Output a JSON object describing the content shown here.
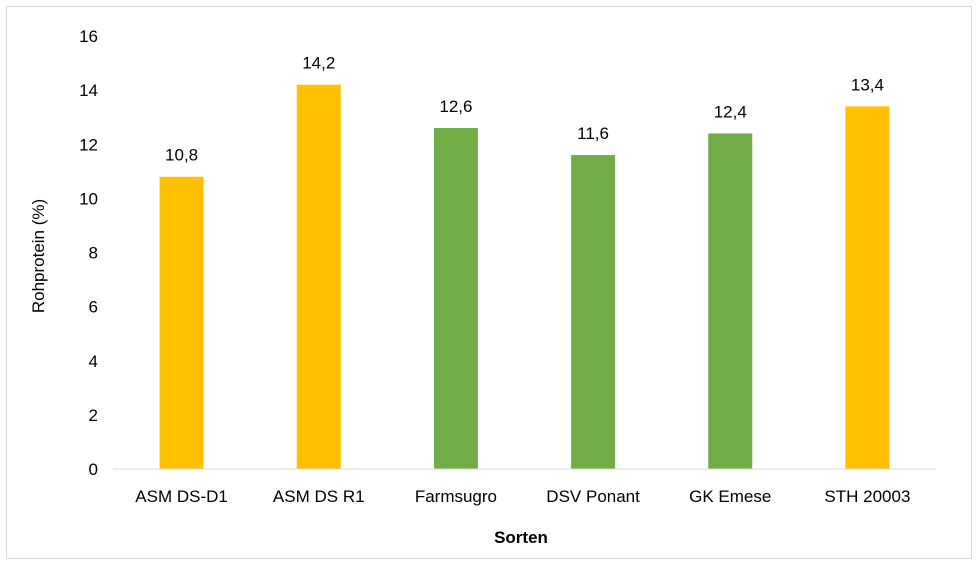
{
  "chart_data": {
    "type": "bar",
    "categories": [
      "ASM DS-D1",
      "ASM DS R1",
      "Farmsugro",
      "DSV Ponant",
      "GK Emese",
      "STH 20003"
    ],
    "values": [
      10.8,
      14.2,
      12.6,
      11.6,
      12.4,
      13.4
    ],
    "value_labels": [
      "10,8",
      "14,2",
      "12,6",
      "11,6",
      "12,4",
      "13,4"
    ],
    "bar_colors": [
      "#FFC000",
      "#FFC000",
      "#70AD47",
      "#70AD47",
      "#70AD47",
      "#FFC000"
    ],
    "title": "",
    "xlabel": "Sorten",
    "ylabel": "Rohprotein (%)",
    "ylim": [
      0,
      16
    ],
    "yticks": [
      "0",
      "2",
      "4",
      "6",
      "8",
      "10",
      "12",
      "14",
      "16"
    ],
    "grid": false,
    "legend": "none",
    "axis_color": "#d9d9d9"
  }
}
